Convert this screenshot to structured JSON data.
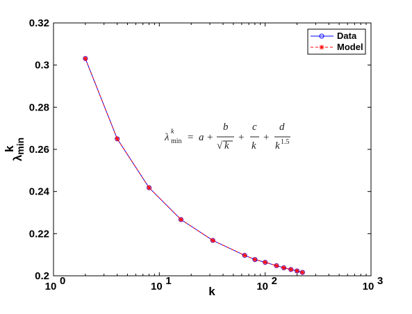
{
  "chart_data": {
    "type": "line",
    "xscale": "log",
    "xlim": [
      1,
      1000
    ],
    "ylim": [
      0.2,
      0.32
    ],
    "xlabel": "k",
    "ylabel_main": "λ",
    "ylabel_sup": "k",
    "ylabel_sub": "min",
    "xticks": [
      {
        "value": 1,
        "base": "10",
        "exp": "0"
      },
      {
        "value": 10,
        "base": "10",
        "exp": "1"
      },
      {
        "value": 100,
        "base": "10",
        "exp": "2"
      },
      {
        "value": 1000,
        "base": "10",
        "exp": "3"
      }
    ],
    "yticks": [
      0.2,
      0.22,
      0.24,
      0.26,
      0.28,
      0.3,
      0.32
    ],
    "ytick_labels": [
      "0.2",
      "0.22",
      "0.24",
      "0.26",
      "0.28",
      "0.3",
      "0.32"
    ],
    "x": [
      2,
      4,
      8,
      16,
      32,
      64,
      80,
      100,
      128,
      150,
      175,
      200,
      225
    ],
    "series": [
      {
        "name": "Data",
        "color": "#0000ff",
        "marker": "circle",
        "values": [
          0.3031,
          0.265,
          0.2418,
          0.2267,
          0.2168,
          0.2097,
          0.2077,
          0.2064,
          0.2048,
          0.2038,
          0.203,
          0.2023,
          0.2016
        ]
      },
      {
        "name": "Model",
        "color": "#ff0000",
        "line_style": "dashed",
        "marker": "asterisk",
        "values": [
          0.3031,
          0.265,
          0.2418,
          0.2267,
          0.2168,
          0.2097,
          0.2077,
          0.2064,
          0.2048,
          0.2038,
          0.203,
          0.2023,
          0.2016
        ]
      }
    ],
    "legend_position": "top-right",
    "grid": false,
    "annotation": {
      "lhs_main": "λ",
      "lhs_sup": "k",
      "lhs_sub": "min",
      "eq": "=",
      "a": "a",
      "plus": "+",
      "b": "b",
      "sqrt_sign": "√",
      "k": "k",
      "c": "c",
      "d": "d",
      "exp": "1.5"
    }
  }
}
